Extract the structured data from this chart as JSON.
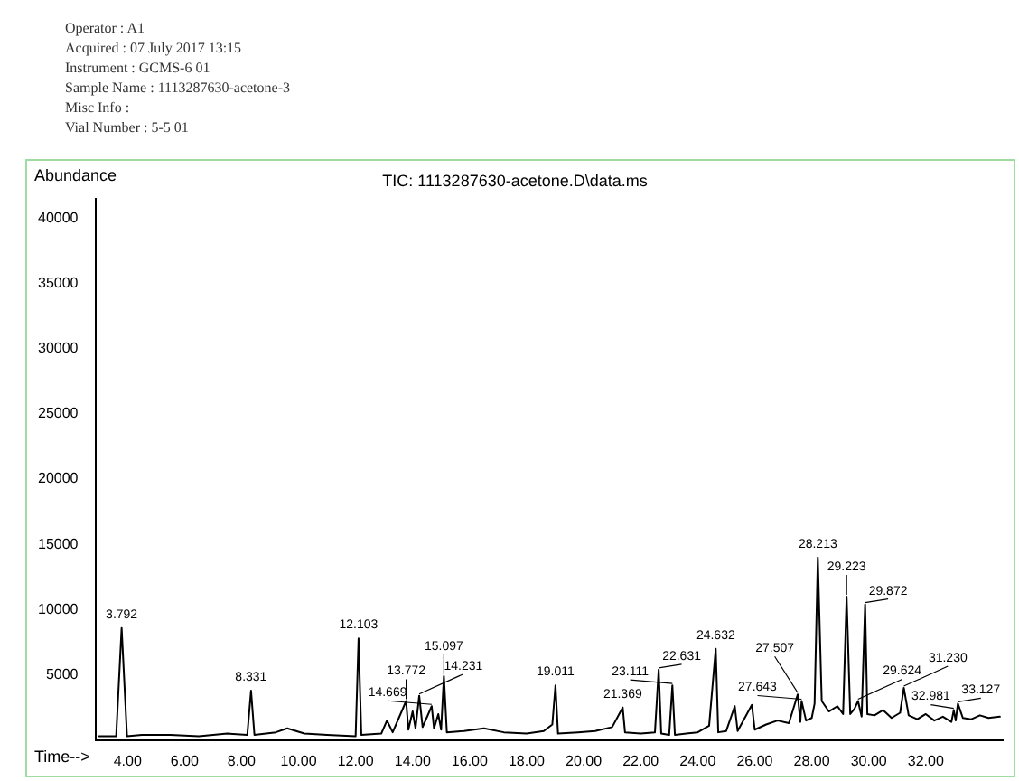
{
  "chart_data": {
    "type": "line",
    "title": "TIC: 1113287630-acetone.D\\data.ms",
    "xlabel": "Time-->",
    "ylabel": "Abundance",
    "annotations": [
      "Operator : A1",
      "Acquired : 07 July 2017 13:15",
      "Instrument : GCMS-6 01",
      "Sample Name : 1113287630-acetone-3",
      "Misc Info :",
      "Vial Number : 5-5 01",
      {
        "text": "3.792",
        "x": 3.792,
        "y": 8600
      },
      {
        "text": "8.331",
        "x": 8.331,
        "y": 3800
      },
      {
        "text": "12.103",
        "x": 12.103,
        "y": 7800
      },
      {
        "text": "13.772",
        "x": 13.772,
        "y": 3000
      },
      {
        "text": "14.231",
        "x": 14.231,
        "y": 3400
      },
      {
        "text": "14.669",
        "x": 14.669,
        "y": 2600
      },
      {
        "text": "15.097",
        "x": 15.097,
        "y": 4900
      },
      {
        "text": "19.011",
        "x": 19.011,
        "y": 4200
      },
      {
        "text": "21.369",
        "x": 21.369,
        "y": 2500
      },
      {
        "text": "22.631",
        "x": 22.631,
        "y": 5400
      },
      {
        "text": "23.111",
        "x": 23.111,
        "y": 4200
      },
      {
        "text": "24.632",
        "x": 24.632,
        "y": 7000
      },
      {
        "text": "27.507",
        "x": 27.507,
        "y": 3500
      },
      {
        "text": "27.643",
        "x": 27.643,
        "y": 3000
      },
      {
        "text": "28.213",
        "x": 28.213,
        "y": 14000
      },
      {
        "text": "29.223",
        "x": 29.223,
        "y": 11000
      },
      {
        "text": "29.624",
        "x": 29.624,
        "y": 3000
      },
      {
        "text": "29.872",
        "x": 29.872,
        "y": 10400
      },
      {
        "text": "31.230",
        "x": 31.23,
        "y": 4000
      },
      {
        "text": "32.981",
        "x": 32.981,
        "y": 2300
      },
      {
        "text": "33.127",
        "x": 33.127,
        "y": 2800
      }
    ],
    "x": [
      3.0,
      3.6,
      3.792,
      3.98,
      4.5,
      5.5,
      6.5,
      7.5,
      8.2,
      8.331,
      8.45,
      9.2,
      9.6,
      10.2,
      11.0,
      12.0,
      12.103,
      12.2,
      12.9,
      13.1,
      13.3,
      13.772,
      13.85,
      14.0,
      14.1,
      14.231,
      14.35,
      14.669,
      14.75,
      14.9,
      15.0,
      15.097,
      15.2,
      15.8,
      16.5,
      17.2,
      18.0,
      18.6,
      18.9,
      19.011,
      19.1,
      19.8,
      20.4,
      21.0,
      21.369,
      21.45,
      22.0,
      22.5,
      22.631,
      22.72,
      23.0,
      23.111,
      23.2,
      24.0,
      24.4,
      24.632,
      24.72,
      25.0,
      25.3,
      25.4,
      25.9,
      26.0,
      26.4,
      26.8,
      27.2,
      27.507,
      27.6,
      27.643,
      27.8,
      28.0,
      28.1,
      28.213,
      28.35,
      28.6,
      28.9,
      29.1,
      29.223,
      29.35,
      29.5,
      29.624,
      29.75,
      29.872,
      29.95,
      30.2,
      30.5,
      30.8,
      31.1,
      31.23,
      31.4,
      31.7,
      32.0,
      32.3,
      32.6,
      32.9,
      32.981,
      33.05,
      33.127,
      33.3,
      33.6,
      33.9,
      34.2,
      34.6
    ],
    "values": [
      300,
      300,
      8600,
      300,
      400,
      400,
      300,
      500,
      400,
      3800,
      400,
      600,
      900,
      500,
      400,
      300,
      7800,
      400,
      500,
      1500,
      600,
      3000,
      800,
      2200,
      900,
      3400,
      1000,
      2600,
      900,
      2000,
      800,
      4900,
      600,
      700,
      900,
      600,
      500,
      700,
      1200,
      4200,
      500,
      600,
      700,
      1000,
      2500,
      600,
      500,
      600,
      5400,
      500,
      400,
      4200,
      400,
      600,
      1100,
      7000,
      600,
      700,
      2600,
      700,
      2700,
      800,
      1200,
      1500,
      1300,
      3500,
      1400,
      3000,
      1500,
      1700,
      2800,
      14000,
      3000,
      2200,
      2600,
      2000,
      11000,
      2000,
      2400,
      3000,
      1800,
      10400,
      2000,
      1900,
      2300,
      1700,
      2100,
      4000,
      1900,
      1600,
      2000,
      1500,
      1800,
      1400,
      2300,
      1500,
      2800,
      1700,
      1600,
      1900,
      1700,
      1800
    ],
    "color": "#000000",
    "marker": "none",
    "line_style": "solid",
    "grid": false,
    "legend": false,
    "xlim": [
      2.9,
      34.7
    ],
    "xticks": [
      {
        "value": 4,
        "label": "4.00"
      },
      {
        "value": 6,
        "label": "6.00"
      },
      {
        "value": 8,
        "label": "8.00"
      },
      {
        "value": 10,
        "label": "10.00"
      },
      {
        "value": 12,
        "label": "12.00"
      },
      {
        "value": 14,
        "label": "14.00"
      },
      {
        "value": 16,
        "label": "16.00"
      },
      {
        "value": 18,
        "label": "18.00"
      },
      {
        "value": 20,
        "label": "20.00"
      },
      {
        "value": 22,
        "label": "22.00"
      },
      {
        "value": 24,
        "label": "24.00"
      },
      {
        "value": 26,
        "label": "26.00"
      },
      {
        "value": 28,
        "label": "28.00"
      },
      {
        "value": 30,
        "label": "30.00"
      },
      {
        "value": 32,
        "label": "32.00"
      }
    ],
    "ylim": [
      0,
      41500
    ],
    "yticks": [
      5000,
      10000,
      15000,
      20000,
      25000,
      30000,
      35000,
      40000
    ]
  }
}
